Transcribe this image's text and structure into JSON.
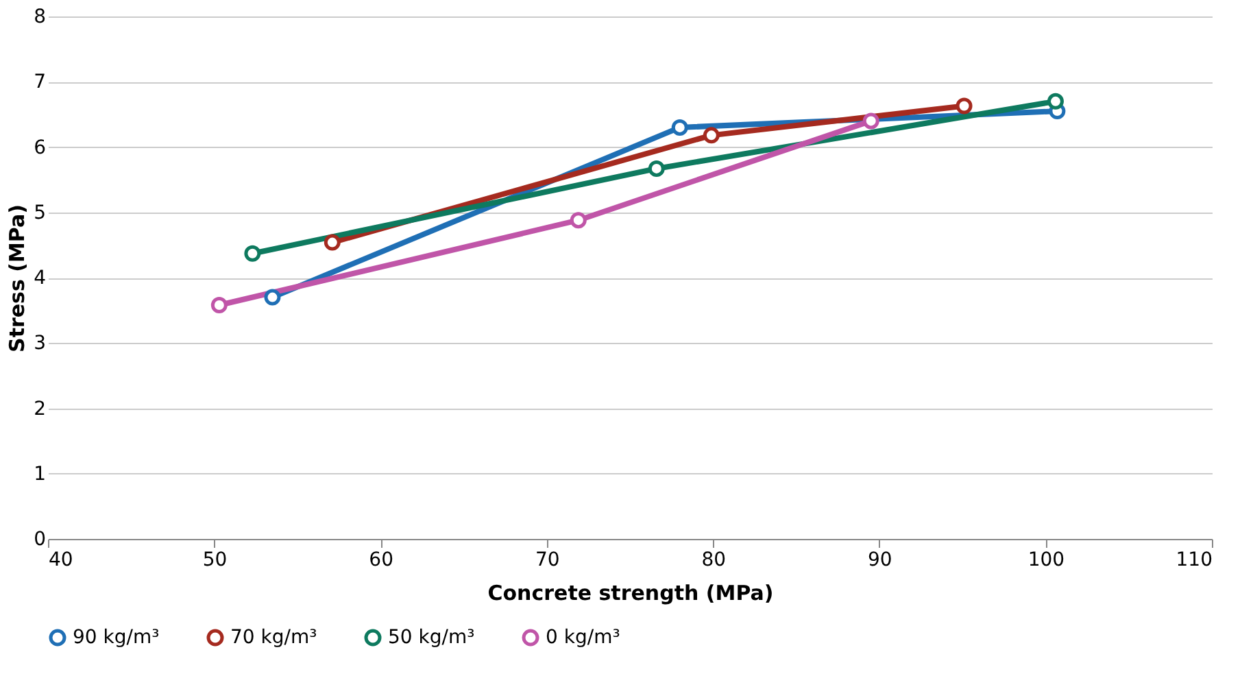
{
  "chart_data": {
    "type": "line",
    "xlabel": "Concrete strength (MPa)",
    "ylabel": "Stress (MPa)",
    "xlim": [
      40,
      110
    ],
    "xticks": [
      40,
      50,
      60,
      70,
      80,
      90,
      100,
      110
    ],
    "ylim": [
      0,
      8
    ],
    "yticks": [
      0,
      1,
      2,
      3,
      4,
      5,
      6,
      7,
      8
    ],
    "grid": "y",
    "legend": "bottom",
    "marker": "circle",
    "line_style": "solid",
    "series": [
      {
        "name": "90 kg/m³",
        "color": "#1f6fb5",
        "x": [
          53.5,
          78,
          100.7
        ],
        "values": [
          3.7,
          6.3,
          6.55
        ]
      },
      {
        "name": "70 kg/m³",
        "color": "#a52a1f",
        "x": [
          57.1,
          79.9,
          95.1
        ],
        "values": [
          4.54,
          6.18,
          6.63
        ]
      },
      {
        "name": "50 kg/m³",
        "color": "#0e7a5f",
        "x": [
          52.3,
          76.6,
          100.6
        ],
        "values": [
          4.37,
          5.67,
          6.7
        ]
      },
      {
        "name": "0 kg/m³",
        "color": "#c055a8",
        "x": [
          50.3,
          71.9,
          89.5
        ],
        "values": [
          3.58,
          4.88,
          6.4
        ]
      }
    ]
  }
}
